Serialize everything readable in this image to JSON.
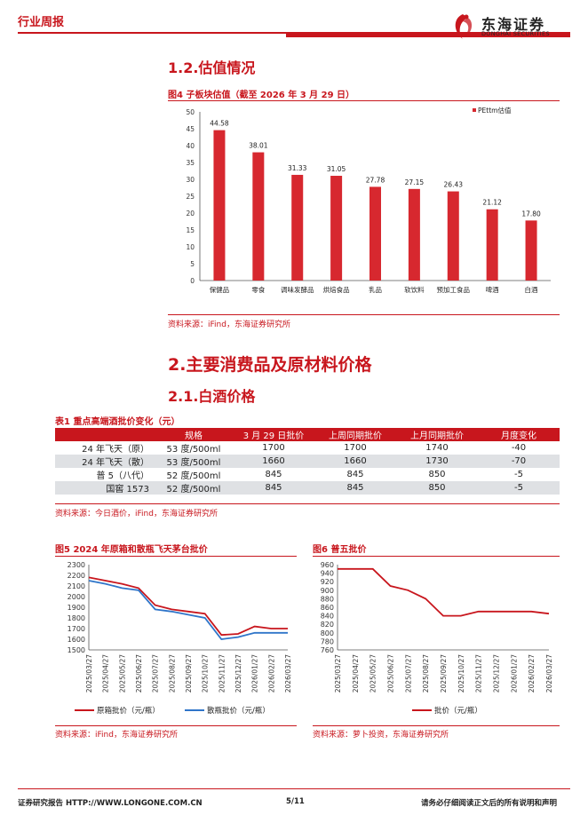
{
  "header": {
    "section": "行业周报",
    "logo_cn": "东海证券",
    "logo_en": "DONGHAI SECURITIES"
  },
  "section_1_2": {
    "title": "1.2.估值情况"
  },
  "figure4": {
    "title": "图4  子板块估值（截至 2026 年 3 月 29 日）",
    "source": "资料来源：iFind，东海证券研究所",
    "chart_data": {
      "type": "bar",
      "categories": [
        "保健品",
        "零食",
        "调味发酵品",
        "烘焙食品",
        "乳品",
        "软饮料",
        "预加工食品",
        "啤酒",
        "白酒"
      ],
      "series": [
        {
          "name": "PEttm估值",
          "values": [
            44.58,
            38.01,
            31.33,
            31.05,
            27.78,
            27.15,
            26.43,
            21.12,
            17.8
          ],
          "color": "#d7282f"
        }
      ],
      "value_labels": [
        "44.58",
        "38.01",
        "31.33",
        "31.05",
        "27.78",
        "27.15",
        "26.43",
        "21.12",
        "17.80"
      ],
      "ylim": [
        0,
        50
      ],
      "yticks": [
        "0",
        "5",
        "10",
        "15",
        "20",
        "25",
        "30",
        "35",
        "40",
        "45",
        "50"
      ],
      "legend": "top-right"
    }
  },
  "section_2": {
    "title": "2.主要消费品及原材料价格"
  },
  "section_2_1": {
    "title": "2.1.白酒价格"
  },
  "table1": {
    "title": "表1  重点高端酒批价变化（元）",
    "headers": [
      "",
      "规格",
      "3 月 29 日批价",
      "上周同期批价",
      "上月同期批价",
      "月度变化"
    ],
    "rows": [
      [
        "24 年飞天（原）",
        "53 度/500ml",
        "1700",
        "1700",
        "1740",
        "-40"
      ],
      [
        "24 年飞天（散）",
        "53 度/500ml",
        "1660",
        "1660",
        "1730",
        "-70"
      ],
      [
        "普 5（八代）",
        "52 度/500ml",
        "845",
        "845",
        "850",
        "-5"
      ],
      [
        "国窖 1573",
        "52 度/500ml",
        "845",
        "845",
        "850",
        "-5"
      ]
    ],
    "source": "资料来源：今日酒价，iFind，东海证券研究所"
  },
  "figure5": {
    "title": "图5  2024 年原箱和散瓶飞天茅台批价",
    "source": "资料来源：iFind，东海证券研究所",
    "chart_data": {
      "type": "line",
      "x": [
        "2025/03/27",
        "2025/04/27",
        "2025/05/27",
        "2025/06/27",
        "2025/07/27",
        "2025/08/27",
        "2025/09/27",
        "2025/10/27",
        "2025/11/27",
        "2025/12/27",
        "2026/01/27",
        "2026/02/27",
        "2026/03/27"
      ],
      "ylim": [
        1500,
        2300
      ],
      "yticks": [
        "1500",
        "1600",
        "1700",
        "1800",
        "1900",
        "2000",
        "2100",
        "2200",
        "2300"
      ],
      "series": [
        {
          "name": "原箱批价（元/瓶）",
          "color": "#c8161d",
          "values": [
            2180,
            2150,
            2120,
            2080,
            1920,
            1880,
            1860,
            1840,
            1640,
            1650,
            1720,
            1700,
            1700
          ]
        },
        {
          "name": "散瓶批价（元/瓶）",
          "color": "#2f75c9",
          "values": [
            2150,
            2120,
            2080,
            2060,
            1880,
            1860,
            1830,
            1800,
            1600,
            1620,
            1660,
            1660,
            1660
          ]
        }
      ],
      "legend": "bottom"
    }
  },
  "figure6": {
    "title": "图6  普五批价",
    "source": "资料来源：萝卜投资，东海证券研究所",
    "chart_data": {
      "type": "line",
      "x": [
        "2025/03/27",
        "2025/04/27",
        "2025/05/27",
        "2025/06/27",
        "2025/07/27",
        "2025/08/27",
        "2025/09/27",
        "2025/10/27",
        "2025/11/27",
        "2025/12/27",
        "2026/01/27",
        "2026/02/27",
        "2026/03/27"
      ],
      "ylim": [
        760,
        960
      ],
      "yticks": [
        "760",
        "780",
        "800",
        "820",
        "840",
        "860",
        "880",
        "900",
        "920",
        "940",
        "960"
      ],
      "series": [
        {
          "name": "批价（元/瓶）",
          "color": "#c8161d",
          "values": [
            950,
            950,
            950,
            910,
            900,
            880,
            840,
            840,
            850,
            850,
            850,
            850,
            845
          ]
        }
      ],
      "legend": "bottom"
    }
  },
  "footer": {
    "left": "证券研究报告    HTTP://WWW.LONGONE.COM.CN",
    "page": "5/11",
    "right": "请务必仔细阅读正文后的所有说明和声明"
  }
}
